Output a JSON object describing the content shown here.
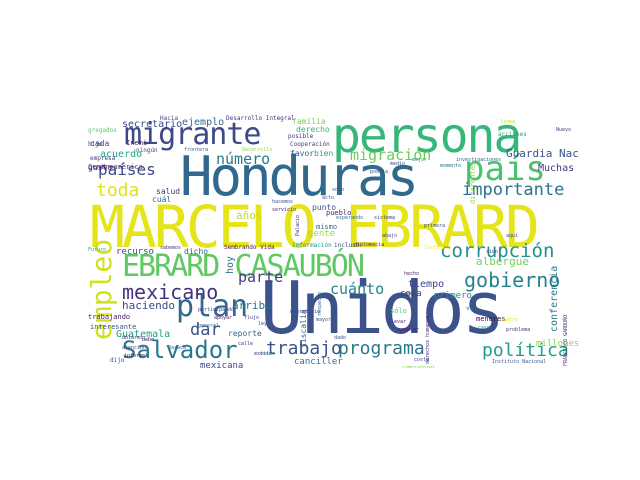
{
  "words": [
    {
      "text": "MARCELO EBRARD",
      "color": "#e5e419"
    },
    {
      "text": "Unidos",
      "color": "#3b528b"
    },
    {
      "text": "Honduras",
      "color": "#31688e"
    },
    {
      "text": "persona",
      "color": "#35b779"
    },
    {
      "text": "EBRARD CASAUBÓN",
      "color": "#5ec962"
    },
    {
      "text": "migrante",
      "color": "#3e4989"
    },
    {
      "text": "país",
      "color": "#4ac16d"
    },
    {
      "text": "plan",
      "color": "#31688e"
    },
    {
      "text": "Salvador",
      "color": "#2a788e"
    },
    {
      "text": "empleo",
      "color": "#d0e11c"
    },
    {
      "text": "programa",
      "color": "#2a788e"
    },
    {
      "text": "gobierno",
      "color": "#26828e"
    },
    {
      "text": "corrupción",
      "color": "#21918c"
    },
    {
      "text": "política",
      "color": "#1f9e89"
    },
    {
      "text": "mexicano",
      "color": "#46337e"
    },
    {
      "text": "trabajo",
      "color": "#3b528b"
    },
    {
      "text": "importante",
      "color": "#2c728e"
    },
    {
      "text": "países",
      "color": "#3e4989"
    },
    {
      "text": "migración",
      "color": "#6ccd5a"
    },
    {
      "text": "toda",
      "color": "#dde318"
    },
    {
      "text": "número",
      "color": "#2a788e"
    },
    {
      "text": "parte",
      "color": "#443983"
    },
    {
      "text": "cuánto",
      "color": "#26828e"
    },
    {
      "text": "dar",
      "color": "#3b528b"
    },
    {
      "text": "Guardia Nacional",
      "color": "#3b528b"
    },
    {
      "text": "secretario",
      "color": "#3e4989"
    },
    {
      "text": "ejemplo",
      "color": "#31688e"
    },
    {
      "text": "acuerdo",
      "color": "#22a884"
    },
    {
      "text": "albergue",
      "color": "#73d056"
    },
    {
      "text": "conferencia",
      "color": "#2a788e"
    },
    {
      "text": "haciendo",
      "color": "#3e4989"
    },
    {
      "text": "arriba",
      "color": "#2c728e"
    },
    {
      "text": "Guatemala",
      "color": "#1fa088"
    },
    {
      "text": "Muchas",
      "color": "#46337e"
    },
    {
      "text": "millones",
      "color": "#8fd744"
    },
    {
      "text": "tiempo",
      "color": "#414487"
    },
    {
      "text": "cosa",
      "color": "#443983"
    },
    {
      "text": "primero",
      "color": "#25848e"
    },
    {
      "text": "gente",
      "color": "#a0da39"
    },
    {
      "text": "años",
      "color": "#b8de29"
    },
    {
      "text": "hoy",
      "color": "#2c728e"
    },
    {
      "text": "canciller",
      "color": "#2c728e"
    },
    {
      "text": "mexicana",
      "color": "#3e4989"
    },
    {
      "text": "reporte",
      "color": "#355f8d"
    },
    {
      "text": "recurso",
      "color": "#414487"
    },
    {
      "text": "dicho",
      "color": "#3b528b"
    },
    {
      "text": "fiscalía",
      "color": "#31688e"
    },
    {
      "text": "salud",
      "color": "#472d7b"
    },
    {
      "text": "cuál",
      "color": "#306a8e"
    },
    {
      "text": "gusto",
      "color": "#440154"
    },
    {
      "text": "cada",
      "color": "#433e85"
    },
    {
      "text": "Inemi",
      "color": "#481f70"
    },
    {
      "text": "Centroamérica",
      "color": "#3f4788"
    },
    {
      "text": "familia",
      "color": "#7ad151"
    },
    {
      "text": "derecho",
      "color": "#2fb47c"
    },
    {
      "text": "favor",
      "color": "#34608d"
    },
    {
      "text": "bien",
      "color": "#20a386"
    },
    {
      "text": "punto",
      "color": "#3b528b"
    },
    {
      "text": "pueblo",
      "color": "#482475"
    },
    {
      "text": "mismo",
      "color": "#2e6e8e"
    },
    {
      "text": "sólo",
      "color": "#54c568"
    },
    {
      "text": "menores",
      "color": "#440154"
    },
    {
      "text": "trabajando",
      "color": "#48186a"
    },
    {
      "text": "interesante",
      "color": "#3b528b"
    },
    {
      "text": "Sembrando Vida",
      "color": "#481467"
    },
    {
      "text": "información",
      "color": "#1f988b"
    },
    {
      "text": "incluso",
      "color": "#3e4989"
    },
    {
      "text": "diplomacia",
      "color": "#481c6e"
    },
    {
      "text": "Desarrollo Integral",
      "color": "#463480"
    },
    {
      "text": "Cooperación",
      "color": "#453882"
    },
    {
      "text": "posible",
      "color": "#472f7d"
    },
    {
      "text": "Hacia",
      "color": "#3e4989"
    },
    {
      "text": "gregados",
      "color": "#5ec962"
    },
    {
      "text": "hijo",
      "color": "#3e4989"
    },
    {
      "text": "frontera",
      "color": "#375a8c"
    },
    {
      "text": "Desarrollo",
      "color": "#8fd744"
    },
    {
      "text": "acciones",
      "color": "#1f9f88"
    },
    {
      "text": "investigaciones",
      "color": "#31688e"
    },
    {
      "text": "mejor",
      "color": "#1f988b"
    },
    {
      "text": "momento",
      "color": "#2c728e"
    },
    {
      "text": "medio",
      "color": "#3e4989"
    },
    {
      "text": "empresa",
      "color": "#433e85"
    },
    {
      "text": "ningún",
      "color": "#3e4989"
    },
    {
      "text": "sabemos",
      "color": "#46337e"
    },
    {
      "text": "Futuro",
      "color": "#22a884"
    },
    {
      "text": "atención",
      "color": "#414487"
    },
    {
      "text": "informe",
      "color": "#440154"
    },
    {
      "text": "dijo",
      "color": "#3e4989"
    },
    {
      "text": "Oaxaca",
      "color": "#2d708e"
    },
    {
      "text": "dólares",
      "color": "#481a6c"
    },
    {
      "text": "general",
      "color": "#31688e"
    },
    {
      "text": "apoyar",
      "color": "#48186a"
    },
    {
      "text": "flujo",
      "color": "#433e85"
    },
    {
      "text": "calle",
      "color": "#46327e"
    },
    {
      "text": "ley",
      "color": "#414487"
    },
    {
      "text": "llevar",
      "color": "#482878"
    },
    {
      "text": "dado",
      "color": "#3b528b"
    },
    {
      "text": "conocer",
      "color": "#481668"
    },
    {
      "text": "problema",
      "color": "#46337e"
    },
    {
      "text": "Instituto Nacional",
      "color": "#355f8d"
    },
    {
      "text": "derechos humanos",
      "color": "#482374"
    },
    {
      "text": "caso",
      "color": "#2a788e"
    },
    {
      "text": "cuatro",
      "color": "#e5e419"
    },
    {
      "text": "hecho",
      "color": "#48186a"
    },
    {
      "text": "Instituto",
      "color": "#fde725"
    },
    {
      "text": "sido",
      "color": "#3e4989"
    },
    {
      "text": "vez",
      "color": "#2c728e"
    },
    {
      "text": "respecto",
      "color": "#31688e"
    },
    {
      "text": "esperando",
      "color": "#2e6e8e"
    },
    {
      "text": "sistema",
      "color": "#453781"
    },
    {
      "text": "abajo",
      "color": "#3e4989"
    },
    {
      "text": "hacemos",
      "color": "#3b528b"
    },
    {
      "text": "servicio",
      "color": "#472c7a"
    },
    {
      "text": "Palacio",
      "color": "#481f70"
    },
    {
      "text": "acto",
      "color": "#39568c"
    },
    {
      "text": "solo",
      "color": "#3f4788"
    },
    {
      "text": "diferentes",
      "color": "#8fd744"
    },
    {
      "text": "línea",
      "color": "#b5de2b"
    },
    {
      "text": "podría",
      "color": "#3b528b"
    },
    {
      "text": "FRANCISCO GARDUÑO",
      "color": "#46337e"
    },
    {
      "text": "Nuevo",
      "color": "#3e4989"
    },
    {
      "text": "debe",
      "color": "#440154"
    },
    {
      "text": "existe",
      "color": "#48186a"
    },
    {
      "text": "participando",
      "color": "#433e85"
    },
    {
      "text": "migratorio",
      "color": "#3e4989"
    },
    {
      "text": "mayor",
      "color": "#3b528b"
    },
    {
      "text": "red",
      "color": "#414487"
    },
    {
      "text": "costa",
      "color": "#3e4989"
    },
    {
      "text": "compradores",
      "color": "#8fd744"
    },
    {
      "text": "primera",
      "color": "#3b528b"
    },
    {
      "text": "aquí",
      "color": "#3e4989"
    },
    {
      "text": "visto",
      "color": "#2e6e8e"
    }
  ]
}
